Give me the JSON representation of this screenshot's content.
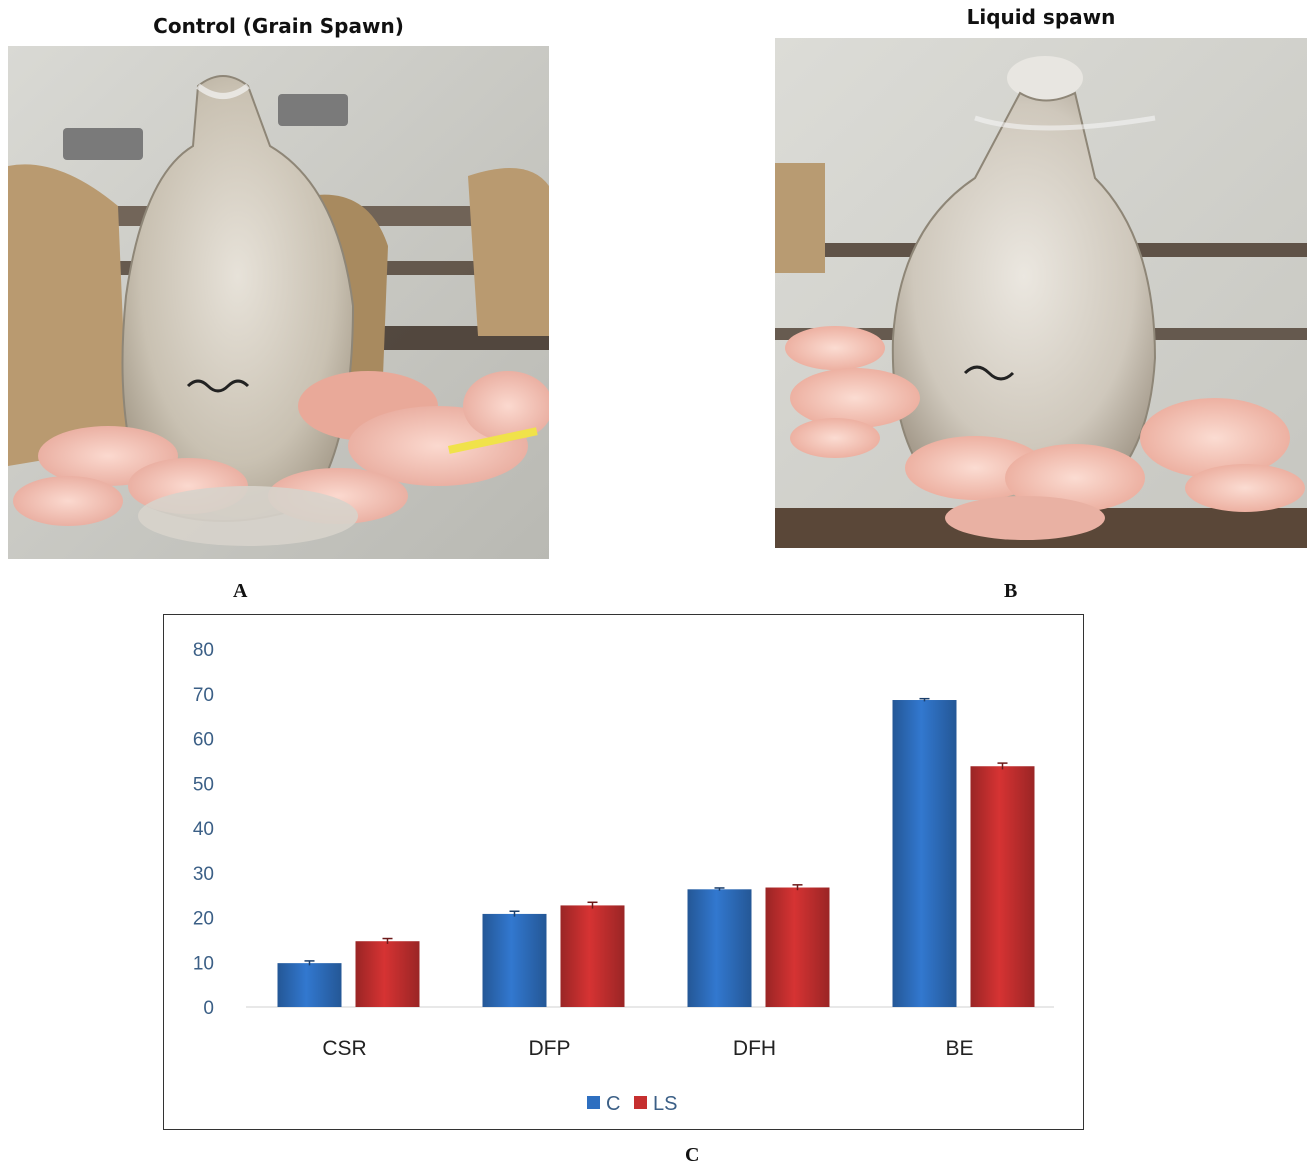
{
  "panels": {
    "a": {
      "title": "Control (Grain Spawn)",
      "letter": "A"
    },
    "b": {
      "title": "Liquid spawn",
      "letter": "B"
    },
    "c": {
      "letter": "C"
    }
  },
  "chart_data": {
    "type": "bar",
    "categories": [
      "CSR",
      "DFP",
      "DFH",
      "BE"
    ],
    "series": [
      {
        "name": "C",
        "color": "#2e6fc0",
        "values": [
          9.8,
          20.8,
          26.3,
          68.6
        ],
        "errors": [
          0.5,
          0.6,
          0.3,
          0.3
        ]
      },
      {
        "name": "LS",
        "color": "#c62f2f",
        "values": [
          14.7,
          22.7,
          26.7,
          53.8
        ],
        "errors": [
          0.6,
          0.7,
          0.6,
          0.7
        ]
      }
    ],
    "yticks": [
      "0",
      "10",
      "20",
      "30",
      "40",
      "50",
      "60",
      "70",
      "80"
    ],
    "ylim": [
      0,
      80
    ],
    "grid": false,
    "legend_position": "bottom-center",
    "title": "",
    "xlabel": "",
    "ylabel": ""
  }
}
